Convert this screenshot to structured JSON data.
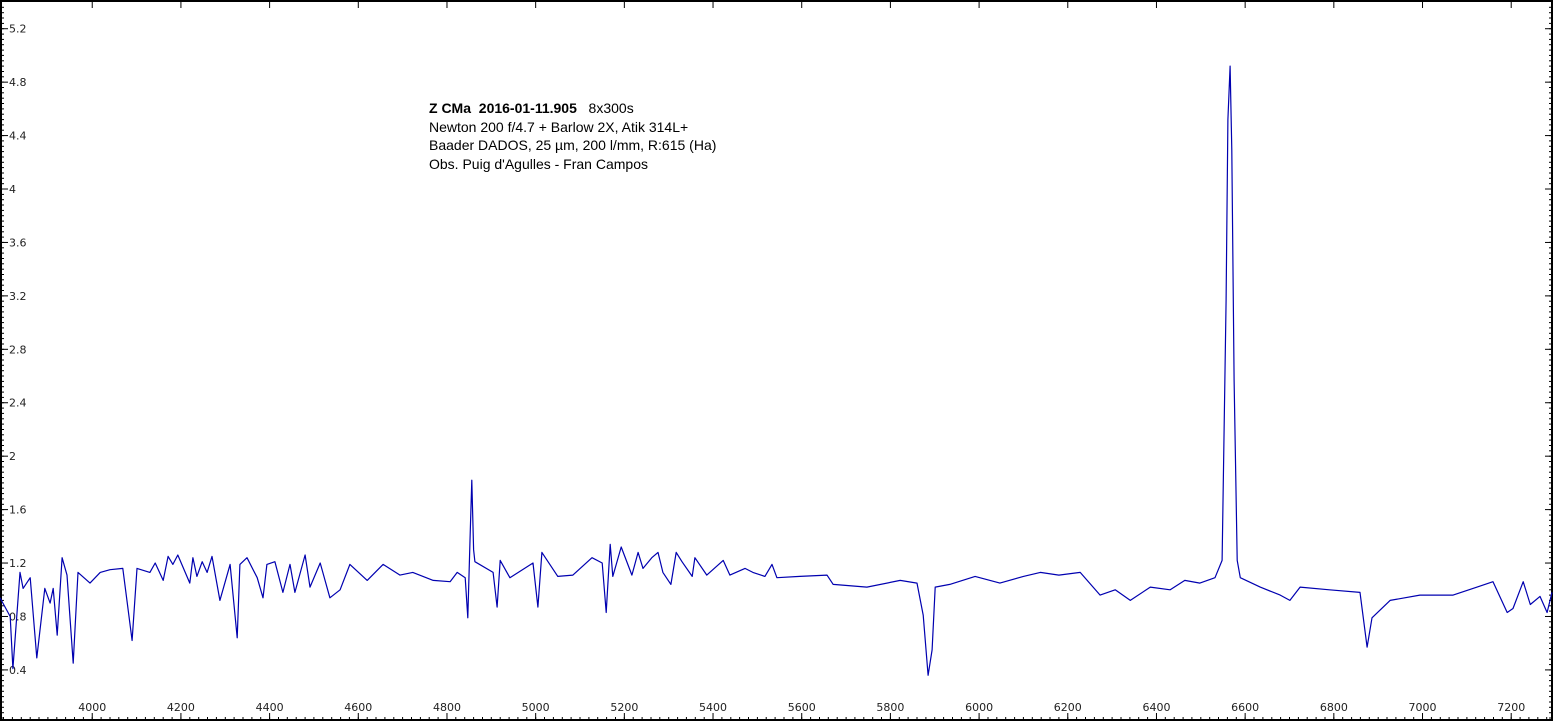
{
  "chart_data": {
    "type": "line",
    "title": "",
    "xlabel": "",
    "ylabel": "",
    "xlim": [
      3792,
      7292
    ],
    "ylim": [
      0.025,
      5.4
    ],
    "grid": false,
    "line_color": "#0000b0",
    "x_ticks": [
      "4000",
      "4200",
      "4400",
      "4600",
      "4800",
      "5000",
      "5200",
      "5400",
      "5600",
      "5800",
      "6000",
      "6200",
      "6400",
      "6600",
      "6800",
      "7000",
      "7200"
    ],
    "y_ticks": [
      "0.4",
      "0.8",
      "1.2",
      "1.6",
      "2",
      "2.4",
      "2.8",
      "3.2",
      "3.6",
      "4",
      "4.4",
      "4.8",
      "5.2"
    ],
    "annotation": {
      "object": "Z CMa",
      "date": "2016-01-11.905",
      "exposure": "8x300s",
      "line2": "Newton 200 f/4.7 + Barlow 2X, Atik 314L+",
      "line3": "Baader DADOS, 25 µm, 200 l/mm, R:615 (Ha)",
      "line4": "Obs. Puig d'Agulles - Fran Campos"
    },
    "series": [
      {
        "x": [
          3792,
          3815,
          3821,
          3837,
          3844,
          3860,
          3875,
          3893,
          3905,
          3912,
          3921,
          3932,
          3943,
          3957,
          3968,
          3995,
          4018,
          4040,
          4069,
          4090,
          4101,
          4130,
          4142,
          4160,
          4171,
          4182,
          4193,
          4220,
          4227,
          4236,
          4248,
          4259,
          4270,
          4288,
          4311,
          4327,
          4333,
          4349,
          4372,
          4385,
          4394,
          4412,
          4430,
          4446,
          4457,
          4480,
          4491,
          4514,
          4536,
          4559,
          4581,
          4620,
          4656,
          4694,
          4723,
          4769,
          4807,
          4823,
          4841,
          4847,
          4852,
          4856,
          4860,
          4863,
          4904,
          4913,
          4920,
          4942,
          4994,
          5005,
          5014,
          5050,
          5084,
          5127,
          5150,
          5159,
          5168,
          5174,
          5193,
          5217,
          5231,
          5242,
          5262,
          5276,
          5287,
          5305,
          5317,
          5330,
          5353,
          5359,
          5386,
          5423,
          5438,
          5472,
          5490,
          5517,
          5533,
          5544,
          5596,
          5657,
          5671,
          5747,
          5822,
          5860,
          5874,
          5885,
          5894,
          5901,
          5934,
          5991,
          6047,
          6100,
          6138,
          6180,
          6228,
          6273,
          6307,
          6341,
          6386,
          6431,
          6464,
          6498,
          6532,
          6548,
          6557,
          6561,
          6566,
          6570,
          6575,
          6582,
          6589,
          6634,
          6679,
          6701,
          6724,
          6790,
          6859,
          6875,
          6886,
          6927,
          6994,
          7069,
          7123,
          7159,
          7191,
          7204,
          7227,
          7243,
          7265,
          7281,
          7292
        ],
        "y": [
          0.94,
          0.8,
          0.41,
          1.13,
          1.01,
          1.09,
          0.49,
          1.01,
          0.9,
          1.01,
          0.66,
          1.24,
          1.11,
          0.45,
          1.13,
          1.05,
          1.13,
          1.15,
          1.16,
          0.62,
          1.16,
          1.13,
          1.2,
          1.07,
          1.25,
          1.19,
          1.26,
          1.05,
          1.24,
          1.1,
          1.21,
          1.13,
          1.25,
          0.92,
          1.19,
          0.64,
          1.19,
          1.24,
          1.09,
          0.94,
          1.19,
          1.21,
          0.98,
          1.19,
          0.98,
          1.26,
          1.02,
          1.2,
          0.94,
          1.0,
          1.19,
          1.07,
          1.19,
          1.11,
          1.13,
          1.07,
          1.06,
          1.13,
          1.09,
          0.79,
          1.37,
          1.82,
          1.3,
          1.21,
          1.13,
          0.87,
          1.22,
          1.09,
          1.2,
          0.87,
          1.28,
          1.1,
          1.11,
          1.24,
          1.2,
          0.83,
          1.34,
          1.1,
          1.32,
          1.11,
          1.28,
          1.16,
          1.24,
          1.28,
          1.13,
          1.04,
          1.28,
          1.21,
          1.1,
          1.24,
          1.11,
          1.22,
          1.11,
          1.16,
          1.13,
          1.1,
          1.19,
          1.09,
          1.1,
          1.11,
          1.04,
          1.02,
          1.07,
          1.05,
          0.81,
          0.36,
          0.55,
          1.02,
          1.04,
          1.1,
          1.05,
          1.1,
          1.13,
          1.11,
          1.13,
          0.96,
          1.0,
          0.92,
          1.02,
          1.0,
          1.07,
          1.05,
          1.09,
          1.22,
          3.17,
          4.52,
          4.92,
          4.29,
          2.57,
          1.22,
          1.09,
          1.02,
          0.96,
          0.92,
          1.02,
          1.0,
          0.98,
          0.57,
          0.79,
          0.92,
          0.96,
          0.96,
          1.02,
          1.06,
          0.83,
          0.86,
          1.06,
          0.89,
          0.95,
          0.83,
          0.98
        ]
      }
    ]
  }
}
